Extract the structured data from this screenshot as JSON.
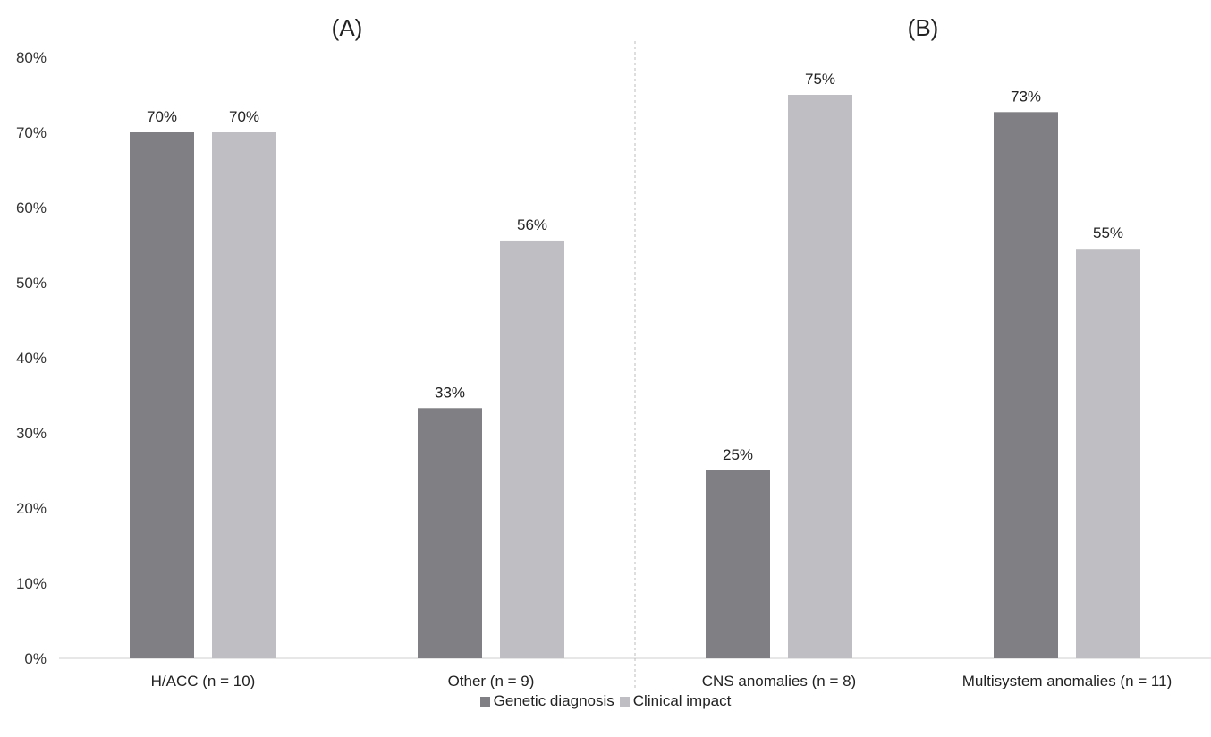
{
  "chart_data": {
    "type": "bar",
    "panels": [
      {
        "label": "(A)",
        "categories": [
          "H/ACC (n = 10)",
          "Other (n = 9)"
        ]
      },
      {
        "label": "(B)",
        "categories": [
          "CNS anomalies (n = 8)",
          "Multisystem anomalies (n = 11)"
        ]
      }
    ],
    "categories": [
      "H/ACC (n = 10)",
      "Other (n = 9)",
      "CNS anomalies (n = 8)",
      "Multisystem anomalies (n = 11)"
    ],
    "series": [
      {
        "name": "Genetic diagnosis",
        "color": "#808084",
        "values": [
          70,
          33.3,
          25,
          72.7
        ],
        "labels": [
          "70%",
          "33%",
          "25%",
          "73%"
        ]
      },
      {
        "name": "Clinical impact",
        "color": "#bfbfc3",
        "values": [
          70,
          55.6,
          75,
          54.5
        ],
        "labels": [
          "70%",
          "56%",
          "75%",
          "55%"
        ]
      }
    ],
    "ylim": [
      0,
      80
    ],
    "yticks": [
      "0%",
      "10%",
      "20%",
      "30%",
      "40%",
      "50%",
      "60%",
      "70%",
      "80%"
    ],
    "grid": false,
    "legend_position": "bottom",
    "divider": "dashed vertical line between panels"
  }
}
